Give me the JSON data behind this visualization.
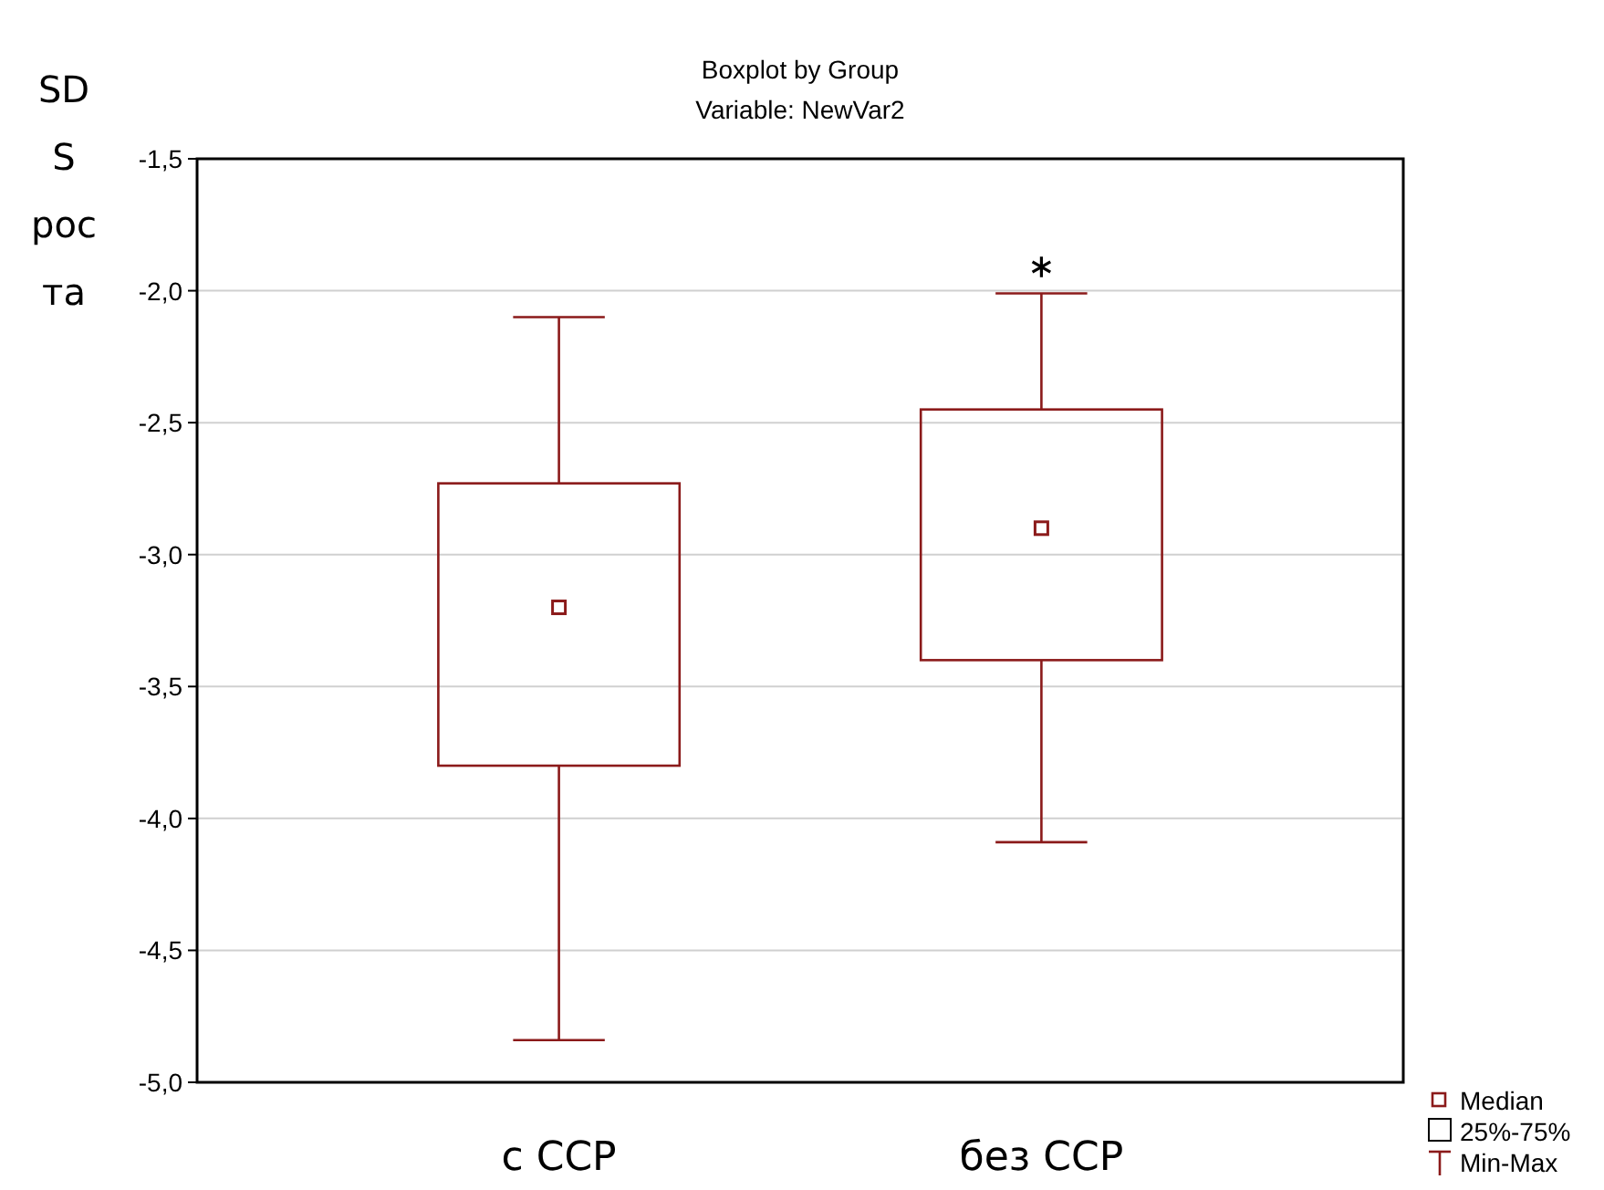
{
  "chart_data": {
    "type": "box",
    "title": "Boxplot by Group",
    "subtitle": "Variable: NewVar2",
    "ylabel": "SD\nS\nрос\nта",
    "categories": [
      "с ССР",
      "без ССР"
    ],
    "color": "#8b1a1a",
    "boxes": [
      {
        "low": -4.84,
        "q1": -3.8,
        "median": -3.2,
        "q3": -2.73,
        "high": -2.1
      },
      {
        "low": -4.09,
        "q1": -3.4,
        "median": -2.9,
        "q3": -2.45,
        "high": -2.01,
        "outliers": [
          -1.91
        ]
      }
    ],
    "ylim": [
      -5,
      -1.5
    ],
    "yticks": [
      {
        "value": -5,
        "label": "-5,0"
      },
      {
        "value": -4.5,
        "label": "-4,5"
      },
      {
        "value": -4,
        "label": "-4,0"
      },
      {
        "value": -3.5,
        "label": "-3,5"
      },
      {
        "value": -3,
        "label": "-3,0"
      },
      {
        "value": -2.5,
        "label": "-2,5"
      },
      {
        "value": -2,
        "label": "-2,0"
      },
      {
        "value": -1.5,
        "label": "-1,5"
      }
    ],
    "grid": "y",
    "marker": "square",
    "annotations": [
      "Median",
      "25%-75%",
      "Min-Max"
    ]
  }
}
